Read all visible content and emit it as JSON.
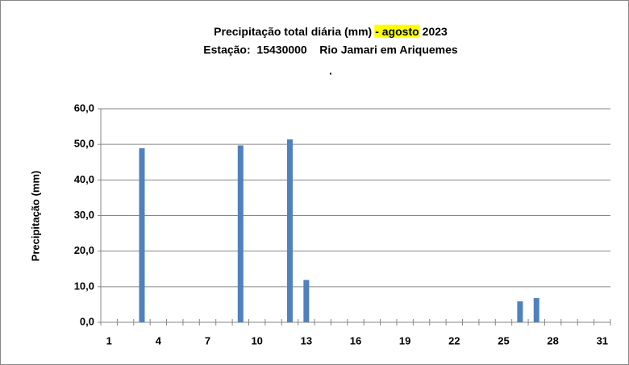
{
  "chart_data": {
    "type": "bar",
    "title": [
      "Precipitação total diária (mm)",
      "- agosto",
      "2023"
    ],
    "title_highlight": 1,
    "subtitle": "Estação:  15430000    Rio Jamari em Ariquemes",
    "note": ".",
    "y_label": "Precipitação (mm)",
    "categories": [
      "1",
      null,
      null,
      "4",
      null,
      null,
      "7",
      null,
      null,
      "10",
      null,
      null,
      "13",
      null,
      null,
      "16",
      null,
      null,
      "19",
      null,
      null,
      "22",
      null,
      null,
      "25",
      null,
      null,
      "28",
      null,
      null,
      "31"
    ],
    "values": [
      0,
      0,
      48.9,
      0,
      0,
      0,
      0,
      0,
      49.7,
      0,
      0,
      51.4,
      11.9,
      0,
      0,
      0,
      0,
      0,
      0,
      0,
      0,
      0,
      0,
      0,
      0,
      5.9,
      6.8,
      0,
      0,
      0,
      0
    ],
    "color": "#4f81bd",
    "ylim": [
      0,
      60
    ],
    "yticks": [
      {
        "value": 0,
        "label": "0,0"
      },
      {
        "value": 10,
        "label": "10,0"
      },
      {
        "value": 20,
        "label": "20,0"
      },
      {
        "value": 30,
        "label": "30,0"
      },
      {
        "value": 40,
        "label": "40,0"
      },
      {
        "value": 50,
        "label": "50,0"
      },
      {
        "value": 60,
        "label": "60,0"
      }
    ],
    "grid": true
  }
}
